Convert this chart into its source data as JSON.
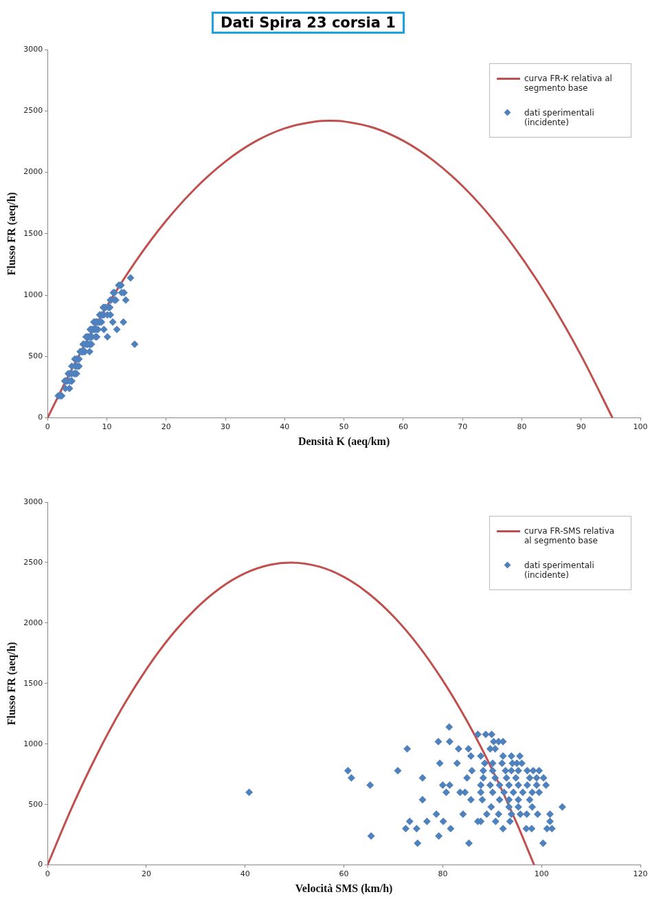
{
  "chart_data": [
    {
      "type": "scatter",
      "title": "Dati Spira 23 corsia 1",
      "xlabel": "Densità K (aeq/km)",
      "ylabel": "Flusso FR (aeq/h)",
      "xlim": [
        0,
        100
      ],
      "xticks": [
        0,
        10,
        20,
        30,
        40,
        50,
        60,
        70,
        80,
        90,
        100
      ],
      "ylim": [
        0,
        3000
      ],
      "yticks": [
        0,
        500,
        1000,
        1500,
        2000,
        2500,
        3000
      ],
      "grid": false,
      "legend": "top right",
      "series": [
        {
          "name": "curva FR-K relativa al segmento base",
          "type": "line",
          "color": "#c0504d",
          "marker": "none",
          "x": [
            0,
            5,
            10,
            15,
            20,
            25,
            30,
            35,
            40,
            45,
            47.7,
            50,
            55,
            60,
            65,
            70,
            75,
            80,
            85,
            90,
            95.3
          ],
          "values": [
            0,
            481,
            909,
            1284,
            1605,
            1873,
            2088,
            2250,
            2358,
            2412,
            2420,
            2414,
            2363,
            2257,
            2099,
            1888,
            1623,
            1304,
            933,
            508,
            0
          ]
        },
        {
          "name": "dati sperimentali (incidente)",
          "type": "scatter",
          "color": "#4f81bd",
          "marker": "diamond",
          "x": [
            14.0,
            12.4,
            12.2,
            12.0,
            12.9,
            12.5,
            11.3,
            11.1,
            13.2,
            11.5,
            11.3,
            10.7,
            10.6,
            10.5,
            10.3,
            9.8,
            9.6,
            9.4,
            10.6,
            10.1,
            9.5,
            9.3,
            9.1,
            8.8,
            12.8,
            11.0,
            9.1,
            8.8,
            8.7,
            8.4,
            8.3,
            8.2,
            8.0,
            7.8,
            11.7,
            9.5,
            8.5,
            8.2,
            7.9,
            7.8,
            7.6,
            7.4,
            7.3,
            7.2,
            10.1,
            8.3,
            8.1,
            7.5,
            7.4,
            7.2,
            7.1,
            6.9,
            6.7,
            6.5,
            7.4,
            7.2,
            7.1,
            6.8,
            6.7,
            6.5,
            6.2,
            6.0,
            7.1,
            6.3,
            6.1,
            5.9,
            5.8,
            5.7,
            5.5,
            5.3,
            5.1,
            4.9,
            4.6,
            5.3,
            5.0,
            4.7,
            4.1,
            4.9,
            4.7,
            4.5,
            4.1,
            3.8,
            3.5,
            4.1,
            4.0,
            3.7,
            3.3,
            3.1,
            3.0,
            2.9,
            3.7,
            3.0,
            2.4,
            2.1,
            1.8,
            14.7
          ],
          "values": [
            1140,
            1080,
            1080,
            1080,
            1020,
            1020,
            1020,
            1020,
            960,
            960,
            960,
            960,
            960,
            900,
            900,
            900,
            900,
            900,
            840,
            840,
            840,
            840,
            840,
            840,
            780,
            780,
            780,
            780,
            780,
            780,
            780,
            780,
            780,
            780,
            720,
            720,
            720,
            720,
            720,
            720,
            720,
            720,
            720,
            720,
            660,
            660,
            660,
            660,
            660,
            660,
            660,
            660,
            660,
            660,
            600,
            600,
            600,
            600,
            600,
            600,
            600,
            600,
            540,
            540,
            540,
            540,
            540,
            540,
            540,
            480,
            480,
            480,
            480,
            420,
            420,
            420,
            420,
            360,
            360,
            360,
            360,
            360,
            360,
            300,
            300,
            300,
            300,
            300,
            300,
            300,
            240,
            240,
            180,
            180,
            180,
            600
          ]
        }
      ]
    },
    {
      "type": "scatter",
      "xlabel": "Velocità SMS (km/h)",
      "ylabel": "Flusso FR (aeq/h)",
      "xlim": [
        0,
        120
      ],
      "xticks": [
        0,
        20,
        40,
        60,
        80,
        100,
        120
      ],
      "ylim": [
        0,
        3000
      ],
      "yticks": [
        0,
        500,
        1000,
        1500,
        2000,
        2500,
        3000
      ],
      "grid": false,
      "legend": "top right",
      "series": [
        {
          "name": "curva FR-SMS relativa al segmento base",
          "type": "line",
          "color": "#c0504d",
          "marker": "none",
          "x": [
            0,
            5,
            10,
            15,
            20,
            25,
            30,
            35,
            40,
            45,
            49.25,
            55,
            60,
            65,
            70,
            75,
            80,
            85,
            90,
            95,
            98.5
          ],
          "values": [
            0,
            482,
            912,
            1291,
            1618,
            1894,
            2118,
            2291,
            2412,
            2481,
            2500,
            2466,
            2381,
            2244,
            2056,
            1817,
            1525,
            1183,
            789,
            342,
            0
          ]
        },
        {
          "name": "dati sperimentali (incidente)",
          "type": "scatter",
          "color": "#4f81bd",
          "marker": "diamond",
          "x": [
            81.3,
            87.1,
            88.7,
            89.9,
            79.1,
            81.4,
            90.3,
            91.3,
            92.2,
            72.8,
            83.2,
            85.2,
            89.6,
            90.6,
            85.7,
            87.7,
            92.2,
            93.9,
            95.6,
            79.4,
            82.9,
            88.5,
            90.1,
            92,
            94.1,
            95,
            96,
            60.8,
            70.9,
            85.9,
            88.2,
            90.1,
            92.7,
            93.9,
            95.3,
            97.1,
            98.3,
            99.5,
            61.5,
            75.9,
            84.9,
            88.2,
            90.6,
            92.9,
            94.8,
            97.6,
            99,
            100.4,
            65.3,
            80,
            81.4,
            87.7,
            89.6,
            91.5,
            93.4,
            95.3,
            97.1,
            99,
            100.9,
            80.7,
            83.5,
            84.5,
            87.7,
            90.1,
            92.4,
            94.3,
            96.2,
            98.1,
            99.5,
            75.9,
            85.7,
            88,
            91.5,
            93.4,
            95.3,
            97.6,
            89.8,
            93.4,
            95.3,
            98.1,
            104.2,
            78.7,
            84.1,
            88.9,
            91.3,
            93.9,
            95.7,
            97,
            99.2,
            101.7,
            73.3,
            76.8,
            80.1,
            87.1,
            87.7,
            90.7,
            93.6,
            101.7,
            72.5,
            74.7,
            81.6,
            92.2,
            96.9,
            98,
            101.1,
            102.1,
            65.5,
            79.2,
            74.9,
            85.3,
            100.3,
            40.8
          ],
          "values": [
            1140,
            1080,
            1080,
            1080,
            1020,
            1020,
            1020,
            1020,
            1020,
            960,
            960,
            960,
            960,
            960,
            900,
            900,
            900,
            900,
            900,
            840,
            840,
            840,
            840,
            840,
            840,
            840,
            840,
            780,
            780,
            780,
            780,
            780,
            780,
            780,
            780,
            780,
            780,
            780,
            720,
            720,
            720,
            720,
            720,
            720,
            720,
            720,
            720,
            720,
            660,
            660,
            660,
            660,
            660,
            660,
            660,
            660,
            660,
            660,
            660,
            600,
            600,
            600,
            600,
            600,
            600,
            600,
            600,
            600,
            600,
            540,
            540,
            540,
            540,
            540,
            540,
            540,
            480,
            480,
            480,
            480,
            480,
            420,
            420,
            420,
            420,
            420,
            420,
            420,
            420,
            420,
            360,
            360,
            360,
            360,
            360,
            360,
            360,
            360,
            300,
            300,
            300,
            300,
            300,
            300,
            300,
            300,
            240,
            240,
            180,
            180,
            180,
            600
          ]
        }
      ]
    }
  ]
}
